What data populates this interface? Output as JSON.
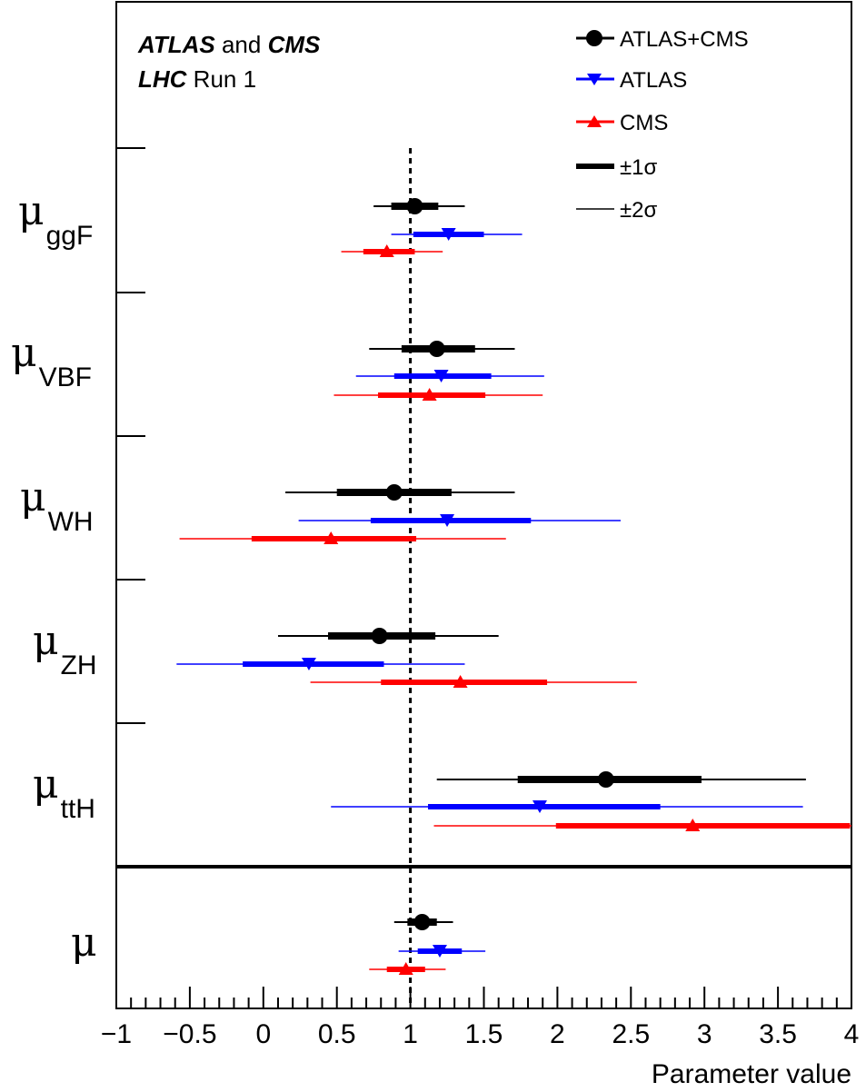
{
  "chart_data": {
    "type": "forest",
    "title": "",
    "xlabel": "Parameter value",
    "xlim": [
      -1,
      4
    ],
    "x_ticks": [
      "−1",
      "−0.5",
      "0",
      "0.5",
      "1",
      "1.5",
      "2",
      "2.5",
      "3",
      "3.5",
      "4"
    ],
    "reference_line": 1,
    "experiment": {
      "line1_bold_a": "ATLAS",
      "line1_and": "and",
      "line1_bold_b": "CMS",
      "line2_bold": "LHC",
      "line2_rest": "Run 1"
    },
    "legend": {
      "combined": "ATLAS+CMS",
      "atlas": "ATLAS",
      "cms": "CMS",
      "one_sigma": "±1σ",
      "two_sigma": "±2σ"
    },
    "colors": {
      "combined": "#000000",
      "atlas": "#0000ff",
      "cms": "#ff0000"
    },
    "parameters": [
      {
        "symbol": "μ",
        "sub": "ggF",
        "combined": {
          "value": 1.03,
          "s1": [
            0.87,
            1.19
          ],
          "s2": [
            0.75,
            1.37
          ]
        },
        "atlas": {
          "value": 1.26,
          "s1": [
            1.02,
            1.5
          ],
          "s2": [
            0.87,
            1.76
          ]
        },
        "cms": {
          "value": 0.84,
          "s1": [
            0.68,
            1.03
          ],
          "s2": [
            0.53,
            1.22
          ]
        }
      },
      {
        "symbol": "μ",
        "sub": "VBF",
        "combined": {
          "value": 1.18,
          "s1": [
            0.94,
            1.44
          ],
          "s2": [
            0.72,
            1.71
          ]
        },
        "atlas": {
          "value": 1.21,
          "s1": [
            0.89,
            1.55
          ],
          "s2": [
            0.63,
            1.91
          ]
        },
        "cms": {
          "value": 1.13,
          "s1": [
            0.78,
            1.51
          ],
          "s2": [
            0.48,
            1.9
          ]
        }
      },
      {
        "symbol": "μ",
        "sub": "WH",
        "combined": {
          "value": 0.89,
          "s1": [
            0.5,
            1.28
          ],
          "s2": [
            0.15,
            1.71
          ]
        },
        "atlas": {
          "value": 1.25,
          "s1": [
            0.73,
            1.82
          ],
          "s2": [
            0.24,
            2.43
          ]
        },
        "cms": {
          "value": 0.46,
          "s1": [
            -0.08,
            1.04
          ],
          "s2": [
            -0.57,
            1.65
          ]
        }
      },
      {
        "symbol": "μ",
        "sub": "ZH",
        "combined": {
          "value": 0.79,
          "s1": [
            0.44,
            1.17
          ],
          "s2": [
            0.1,
            1.6
          ]
        },
        "atlas": {
          "value": 0.31,
          "s1": [
            -0.14,
            0.82
          ],
          "s2": [
            -0.59,
            1.37
          ]
        },
        "cms": {
          "value": 1.34,
          "s1": [
            0.8,
            1.93
          ],
          "s2": [
            0.32,
            2.54
          ]
        }
      },
      {
        "symbol": "μ",
        "sub": "ttH",
        "combined": {
          "value": 2.33,
          "s1": [
            1.73,
            2.98
          ],
          "s2": [
            1.18,
            3.69
          ]
        },
        "atlas": {
          "value": 1.88,
          "s1": [
            1.12,
            2.7
          ],
          "s2": [
            0.46,
            3.67
          ]
        },
        "cms": {
          "value": 2.92,
          "s1": [
            1.99,
            3.99
          ],
          "s2": [
            1.16,
            4.0
          ]
        }
      }
    ],
    "overall": {
      "symbol": "μ",
      "sub": "",
      "combined": {
        "value": 1.08,
        "s1": [
          0.98,
          1.18
        ],
        "s2": [
          0.89,
          1.29
        ]
      },
      "atlas": {
        "value": 1.2,
        "s1": [
          1.05,
          1.35
        ],
        "s2": [
          0.92,
          1.51
        ]
      },
      "cms": {
        "value": 0.97,
        "s1": [
          0.84,
          1.1
        ],
        "s2": [
          0.72,
          1.24
        ]
      }
    }
  }
}
